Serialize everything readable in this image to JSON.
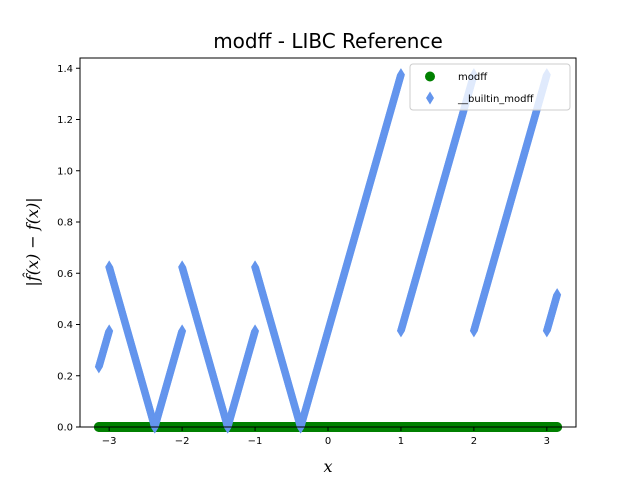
{
  "chart_data": {
    "type": "scatter",
    "title": "modff - LIBC Reference",
    "xlabel": "x",
    "ylabel": "|f̂(x) − f(x)|",
    "xlim": [
      -3.4,
      3.4
    ],
    "ylim": [
      0.0,
      1.44
    ],
    "xticks": [
      -3,
      -2,
      -1,
      0,
      1,
      2,
      3
    ],
    "xtick_labels": [
      "−3",
      "−2",
      "−1",
      "0",
      "1",
      "2",
      "3"
    ],
    "yticks": [
      0.0,
      0.2,
      0.4,
      0.6,
      0.8,
      1.0,
      1.2,
      1.4
    ],
    "ytick_labels": [
      "0.0",
      "0.2",
      "0.4",
      "0.6",
      "0.8",
      "1.0",
      "1.2",
      "1.4"
    ],
    "grid": false,
    "legend_position": "top-right",
    "x_domain": [
      -3.1416,
      3.1416
    ],
    "series": [
      {
        "name": "modff",
        "marker": "circle",
        "color": "#008000",
        "description_points": [
          [
            -3.1416,
            0.0
          ],
          [
            3.1416,
            0.0
          ]
        ]
      },
      {
        "name": "__builtin_modff",
        "marker": "diamond",
        "color": "#6495ED",
        "segments": [
          [
            [
              -3.1416,
              0.2345
            ],
            [
              -3.0,
              0.375
            ]
          ],
          [
            [
              -3.0,
              0.625
            ],
            [
              -2.375,
              0.0
            ]
          ],
          [
            [
              -2.375,
              0.0
            ],
            [
              -2.0,
              0.375
            ]
          ],
          [
            [
              -2.0,
              0.625
            ],
            [
              -1.375,
              0.0
            ]
          ],
          [
            [
              -1.375,
              0.0
            ],
            [
              -1.0,
              0.375
            ]
          ],
          [
            [
              -1.0,
              0.625
            ],
            [
              -0.375,
              0.0
            ]
          ],
          [
            [
              -0.375,
              0.0
            ],
            [
              1.0,
              1.375
            ]
          ],
          [
            [
              1.0,
              0.375
            ],
            [
              2.0,
              1.375
            ]
          ],
          [
            [
              2.0,
              0.375
            ],
            [
              3.0,
              1.375
            ]
          ],
          [
            [
              3.0,
              0.375
            ],
            [
              3.1416,
              0.5166
            ]
          ]
        ]
      }
    ]
  }
}
